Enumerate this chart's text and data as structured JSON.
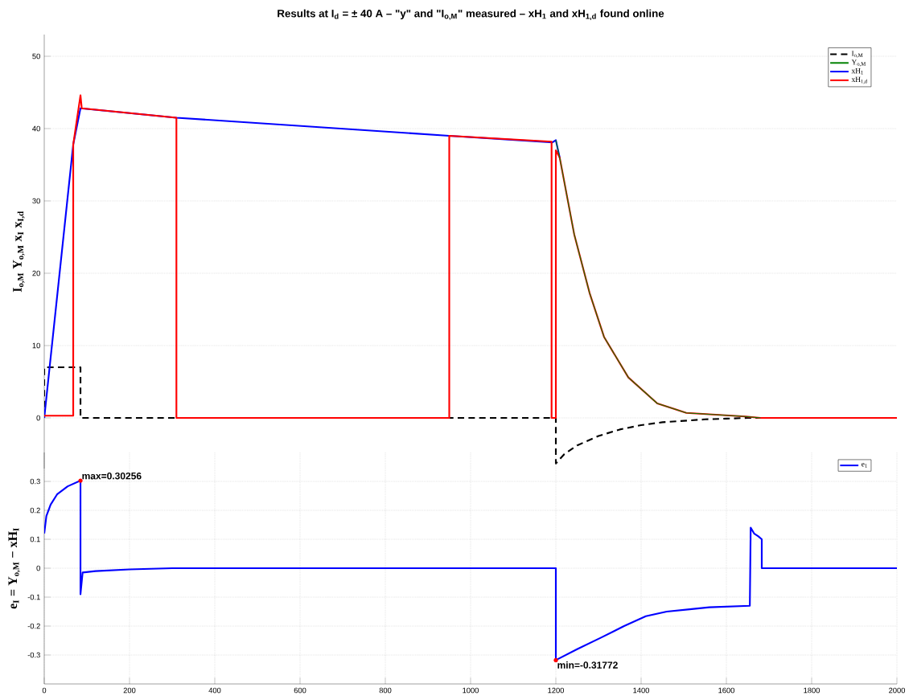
{
  "chart_data": [
    {
      "type": "line",
      "title": "Results at I$_{d}$ = ± 40 A  –  \"y\" and \"I$_{o,M}$\" measured  –  xH$_{1}$ and xH$_{1,d}$ found online",
      "ylabel": "I$_{o,M}$    Y$_{o,M}$    x$_{I}$    x$_{I,d}$",
      "xlim": [
        0,
        2000
      ],
      "ylim": [
        -7,
        53
      ],
      "xticks": [
        0,
        200,
        400,
        600,
        800,
        1000,
        1200,
        1400,
        1600,
        1800,
        2000
      ],
      "yticks": [
        0,
        10,
        20,
        30,
        40,
        50
      ],
      "tick_labels": "y",
      "grid": true,
      "legend": "top right",
      "marker": "none",
      "series": [
        {
          "name": "I$_{o,M}$",
          "color": "#000000",
          "line_style": "dashed",
          "x": [
            0,
            0,
            85,
            85,
            1200,
            1200,
            1220,
            1250,
            1300,
            1350,
            1400,
            1450,
            1500,
            1550,
            1600,
            1650,
            2000
          ],
          "values": [
            0,
            7,
            7,
            0,
            0,
            -6.3,
            -5,
            -3.8,
            -2.5,
            -1.6,
            -1,
            -0.6,
            -0.4,
            -0.2,
            -0.1,
            0,
            0
          ]
        },
        {
          "name": "Y$_{o,M}$",
          "color": "#008000",
          "line_style": "solid",
          "x": [
            1200,
            1209,
            1243,
            1279,
            1313,
            1370,
            1438,
            1506,
            1645,
            1680
          ],
          "values": [
            38.4,
            36,
            25.4,
            17.3,
            11.2,
            5.6,
            2.0,
            0.7,
            0.2,
            0
          ]
        },
        {
          "name": "xH$_{1}$",
          "color": "#0000ff",
          "line_style": "solid",
          "x": [
            0,
            68,
            85,
            310,
            950,
            1192,
            1200,
            1209
          ],
          "values": [
            0,
            37.8,
            42.8,
            41.5,
            39,
            38.1,
            38.4,
            36
          ]
        },
        {
          "name": "xH$_{1,d}$",
          "color": "#ff0000",
          "line_style": "solid",
          "x": [
            0,
            68,
            68,
            85,
            88,
            310,
            310,
            950,
            950,
            1190,
            1190,
            1200,
            1200,
            1209,
            1243,
            1279,
            1313,
            1370,
            1438,
            1506,
            1645,
            1680,
            2000
          ],
          "values": [
            0.3,
            0.3,
            37.8,
            44.6,
            42.8,
            41.5,
            0,
            0,
            39,
            38.2,
            0,
            0,
            37,
            36,
            25.4,
            17.3,
            11.2,
            5.6,
            2.0,
            0.7,
            0.2,
            0,
            0
          ]
        }
      ]
    },
    {
      "type": "line",
      "ylabel": "e$_{I}$ = Y$_{o,M}$ − xH$_{I}$",
      "xlim": [
        0,
        2000
      ],
      "ylim": [
        -0.4,
        0.4
      ],
      "xticks": [
        0,
        200,
        400,
        600,
        800,
        1000,
        1200,
        1400,
        1600,
        1800,
        2000
      ],
      "yticks": [
        -0.3,
        -0.2,
        -0.1,
        0,
        0.1,
        0.2,
        0.3
      ],
      "grid": true,
      "legend": "top right",
      "marker": "none",
      "annotations": [
        {
          "text": "max=0.30256",
          "x": 85,
          "y": 0.30256
        },
        {
          "text": "min=-0.31772",
          "x": 1200,
          "y": -0.31772
        }
      ],
      "series": [
        {
          "name": "e$_{1}$",
          "color": "#0000ff",
          "line_style": "solid",
          "x": [
            0,
            5,
            15,
            30,
            55,
            85,
            85,
            90,
            120,
            200,
            300,
            1200,
            1200,
            1250,
            1306,
            1360,
            1411,
            1460,
            1514,
            1560,
            1655,
            1657,
            1665,
            1675,
            1683,
            1683,
            2000
          ],
          "values": [
            0.12,
            0.18,
            0.22,
            0.255,
            0.283,
            0.30256,
            -0.09,
            -0.015,
            -0.01,
            -0.004,
            0,
            0,
            -0.31772,
            -0.28,
            -0.24,
            -0.2,
            -0.166,
            -0.15,
            -0.142,
            -0.135,
            -0.13,
            0.14,
            0.12,
            0.11,
            0.1,
            0,
            0
          ]
        }
      ]
    }
  ]
}
